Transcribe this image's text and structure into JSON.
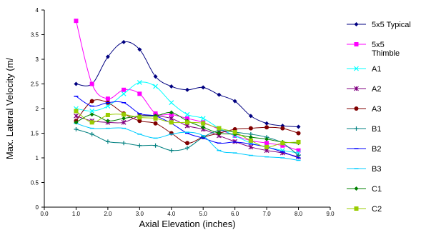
{
  "chart_data": {
    "type": "line",
    "title": "",
    "xlabel": "Axial Elevation (inches)",
    "ylabel": "Max. Lateral Velocity (m/",
    "xlim": [
      0,
      9
    ],
    "ylim": [
      0,
      4
    ],
    "x_ticks": [
      "0.0",
      "1.0",
      "2.0",
      "3.0",
      "4.0",
      "5.0",
      "6.0",
      "7.0",
      "8.0",
      "9.0"
    ],
    "y_ticks": [
      "0",
      "0.5",
      "1",
      "1.5",
      "2",
      "2.5",
      "3",
      "3.5",
      "4"
    ],
    "grid": false,
    "legend_position": "right",
    "series": [
      {
        "name": "5x5 Typical",
        "color": "#000080",
        "marker": "diamond",
        "x": [
          1.0,
          1.5,
          2.0,
          2.5,
          3.0,
          3.5,
          4.0,
          4.5,
          5.0,
          5.5,
          6.0,
          6.5,
          7.0,
          7.5,
          8.0
        ],
        "y": [
          2.5,
          2.5,
          3.05,
          3.35,
          3.2,
          2.65,
          2.45,
          2.38,
          2.43,
          2.28,
          2.15,
          1.85,
          1.7,
          1.65,
          1.63
        ]
      },
      {
        "name": "5x5\nThimble",
        "color": "#ff00ff",
        "marker": "square",
        "x": [
          1.0,
          1.5,
          2.0,
          2.5,
          3.0,
          3.5,
          4.0,
          4.5,
          5.0,
          5.5,
          6.0,
          6.5,
          7.0,
          7.5,
          8.0
        ],
        "y": [
          3.78,
          2.5,
          2.2,
          2.38,
          2.3,
          1.9,
          1.88,
          1.8,
          1.72,
          1.58,
          1.45,
          1.35,
          1.3,
          1.25,
          1.15
        ]
      },
      {
        "name": "A1",
        "color": "#00ffff",
        "marker": "x",
        "x": [
          1.0,
          1.5,
          2.0,
          2.5,
          3.0,
          3.5,
          4.0,
          4.5,
          5.0,
          5.5,
          6.0,
          6.5,
          7.0,
          7.5,
          8.0
        ],
        "y": [
          2.0,
          1.95,
          2.05,
          2.3,
          2.53,
          2.45,
          2.12,
          1.88,
          1.8,
          1.6,
          1.45,
          1.3,
          1.22,
          1.15,
          1.1
        ]
      },
      {
        "name": "A2",
        "color": "#800080",
        "marker": "asterisk",
        "x": [
          1.0,
          1.5,
          2.0,
          2.5,
          3.0,
          3.5,
          4.0,
          4.5,
          5.0,
          5.5,
          6.0,
          6.5,
          7.0,
          7.5,
          8.0
        ],
        "y": [
          1.85,
          1.75,
          1.72,
          1.72,
          1.85,
          1.85,
          1.8,
          1.65,
          1.58,
          1.45,
          1.33,
          1.22,
          1.15,
          1.1,
          1.02
        ]
      },
      {
        "name": "A3",
        "color": "#800000",
        "marker": "circle",
        "x": [
          1.0,
          1.5,
          2.0,
          2.5,
          3.0,
          3.5,
          4.0,
          4.5,
          5.0,
          5.5,
          6.0,
          6.5,
          7.0,
          7.5,
          8.0
        ],
        "y": [
          1.75,
          2.15,
          2.12,
          1.9,
          1.75,
          1.7,
          1.5,
          1.3,
          1.42,
          1.5,
          1.58,
          1.6,
          1.62,
          1.6,
          1.5
        ]
      },
      {
        "name": "B1",
        "color": "#008080",
        "marker": "plus",
        "x": [
          1.0,
          1.5,
          2.0,
          2.5,
          3.0,
          3.5,
          4.0,
          4.5,
          5.0,
          5.5,
          6.0,
          6.5,
          7.0,
          7.5,
          8.0
        ],
        "y": [
          1.58,
          1.48,
          1.33,
          1.3,
          1.25,
          1.25,
          1.15,
          1.2,
          1.42,
          1.55,
          1.52,
          1.48,
          1.42,
          1.3,
          1.05
        ]
      },
      {
        "name": "B2",
        "color": "#0000ff",
        "marker": "dash",
        "x": [
          1.0,
          1.5,
          2.0,
          2.5,
          3.0,
          3.5,
          4.0,
          4.5,
          5.0,
          5.5,
          6.0,
          6.5,
          7.0,
          7.5,
          8.0
        ],
        "y": [
          2.25,
          2.05,
          2.12,
          2.12,
          1.9,
          1.85,
          1.7,
          1.5,
          1.4,
          1.3,
          1.32,
          1.28,
          1.22,
          1.12,
          1.0
        ]
      },
      {
        "name": "B3",
        "color": "#00ccff",
        "marker": "dash",
        "x": [
          1.0,
          1.5,
          2.0,
          2.5,
          3.0,
          3.5,
          4.0,
          4.5,
          5.0,
          5.5,
          6.0,
          6.5,
          7.0,
          7.5,
          8.0
        ],
        "y": [
          1.7,
          1.6,
          1.6,
          1.6,
          1.48,
          1.4,
          1.48,
          1.52,
          1.45,
          1.15,
          1.1,
          1.05,
          1.02,
          1.0,
          0.95
        ]
      },
      {
        "name": "C1",
        "color": "#008000",
        "marker": "diamond",
        "x": [
          1.0,
          1.5,
          2.0,
          2.5,
          3.0,
          3.5,
          4.0,
          4.5,
          5.0,
          5.5,
          6.0,
          6.5,
          7.0,
          7.5,
          8.0
        ],
        "y": [
          1.72,
          1.88,
          1.75,
          1.8,
          1.85,
          1.85,
          1.92,
          1.75,
          1.62,
          1.5,
          1.48,
          1.42,
          1.38,
          1.32,
          1.3
        ]
      },
      {
        "name": "C2",
        "color": "#99cc00",
        "marker": "square",
        "x": [
          1.0,
          1.5,
          2.0,
          2.5,
          3.0,
          3.5,
          4.0,
          4.5,
          5.0,
          5.5,
          6.0,
          6.5,
          7.0,
          7.5,
          8.0
        ],
        "y": [
          1.95,
          1.72,
          1.87,
          1.88,
          1.82,
          1.8,
          1.72,
          1.72,
          1.7,
          1.6,
          1.52,
          1.35,
          1.22,
          1.3,
          1.32
        ]
      }
    ]
  }
}
